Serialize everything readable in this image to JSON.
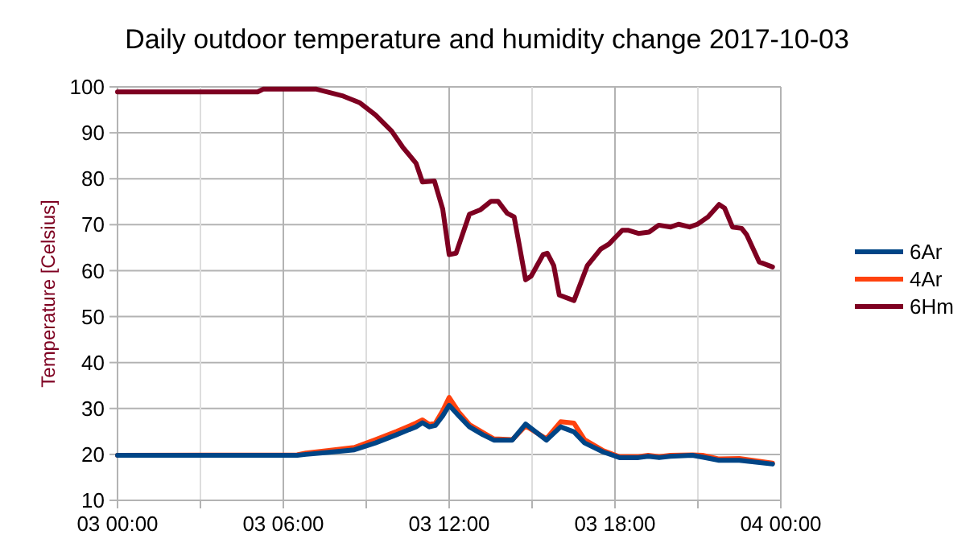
{
  "chart_data": {
    "type": "line",
    "title": "Daily outdoor temperature and humidity change 2017-10-03",
    "ylabel": "Temperature [Celsius]",
    "xlim": [
      "2017-10-03T00:00",
      "2017-10-04T00:00"
    ],
    "xticks": [
      {
        "value": "2017-10-03T00:00",
        "label": "03 00:00"
      },
      {
        "value": "2017-10-03T03:00",
        "label": null
      },
      {
        "value": "2017-10-03T06:00",
        "label": "03 06:00"
      },
      {
        "value": "2017-10-03T09:00",
        "label": null
      },
      {
        "value": "2017-10-03T12:00",
        "label": "03 12:00"
      },
      {
        "value": "2017-10-03T15:00",
        "label": null
      },
      {
        "value": "2017-10-03T18:00",
        "label": "03 18:00"
      },
      {
        "value": "2017-10-03T21:00",
        "label": null
      },
      {
        "value": "2017-10-04T00:00",
        "label": "04 00:00"
      }
    ],
    "ylim": [
      10,
      100
    ],
    "yticks": [
      10,
      20,
      30,
      40,
      50,
      60,
      70,
      80,
      90,
      100
    ],
    "grid": true,
    "legend": "right",
    "marker": "none",
    "line_style": "solid",
    "series": [
      {
        "name": "6Ar",
        "color": "#004586",
        "x": [
          "2017-10-03T00:00",
          "2017-10-03T06:30",
          "2017-10-03T06:49",
          "2017-10-03T07:35",
          "2017-10-03T08:34",
          "2017-10-03T09:20",
          "2017-10-03T10:06",
          "2017-10-03T10:48",
          "2017-10-03T11:02",
          "2017-10-03T11:17",
          "2017-10-03T11:30",
          "2017-10-03T11:46",
          "2017-10-03T12:00",
          "2017-10-03T12:21",
          "2017-10-03T12:44",
          "2017-10-03T13:13",
          "2017-10-03T13:37",
          "2017-10-03T14:17",
          "2017-10-03T14:46",
          "2017-10-03T15:31",
          "2017-10-03T16:02",
          "2017-10-03T16:31",
          "2017-10-03T16:54",
          "2017-10-03T17:35",
          "2017-10-03T18:10",
          "2017-10-03T18:51",
          "2017-10-03T19:12",
          "2017-10-03T19:36",
          "2017-10-03T20:00",
          "2017-10-03T20:48",
          "2017-10-03T21:10",
          "2017-10-03T21:46",
          "2017-10-03T22:30",
          "2017-10-03T23:42"
        ],
        "values": [
          19.8,
          19.8,
          20.0,
          20.4,
          21.0,
          22.5,
          24.3,
          26.0,
          26.9,
          26.0,
          26.3,
          28.4,
          30.7,
          28.4,
          26.0,
          24.3,
          23.1,
          23.1,
          26.6,
          23.1,
          26.0,
          24.9,
          22.5,
          20.5,
          19.3,
          19.3,
          19.6,
          19.3,
          19.6,
          19.8,
          19.4,
          18.7,
          18.7,
          17.9
        ]
      },
      {
        "name": "4Ar",
        "color": "#ff420e",
        "x": [
          "2017-10-03T00:00",
          "2017-10-03T06:30",
          "2017-10-03T06:49",
          "2017-10-03T07:35",
          "2017-10-03T08:34",
          "2017-10-03T09:20",
          "2017-10-03T10:06",
          "2017-10-03T10:48",
          "2017-10-03T11:02",
          "2017-10-03T11:17",
          "2017-10-03T11:30",
          "2017-10-03T11:46",
          "2017-10-03T12:00",
          "2017-10-03T12:21",
          "2017-10-03T12:44",
          "2017-10-03T13:13",
          "2017-10-03T13:37",
          "2017-10-03T14:17",
          "2017-10-03T14:46",
          "2017-10-03T15:31",
          "2017-10-03T16:02",
          "2017-10-03T16:31",
          "2017-10-03T16:54",
          "2017-10-03T17:35",
          "2017-10-03T18:10",
          "2017-10-03T18:51",
          "2017-10-03T19:12",
          "2017-10-03T19:36",
          "2017-10-03T20:00",
          "2017-10-03T20:48",
          "2017-10-03T21:10",
          "2017-10-03T21:46",
          "2017-10-03T22:30",
          "2017-10-03T23:42"
        ],
        "values": [
          19.8,
          19.9,
          20.3,
          20.8,
          21.5,
          23.2,
          25.0,
          26.8,
          27.5,
          26.5,
          26.8,
          29.5,
          32.4,
          29.2,
          26.5,
          24.8,
          23.4,
          23.2,
          26.2,
          23.4,
          27.1,
          26.8,
          23.2,
          20.8,
          19.5,
          19.5,
          19.8,
          19.5,
          19.8,
          19.9,
          19.8,
          19.0,
          19.1,
          18.1
        ]
      },
      {
        "name": "6Hm",
        "color": "#7e0021",
        "x": [
          "2017-10-03T00:00",
          "2017-10-03T05:04",
          "2017-10-03T05:16",
          "2017-10-03T07:12",
          "2017-10-03T08:10",
          "2017-10-03T08:45",
          "2017-10-03T09:20",
          "2017-10-03T09:55",
          "2017-10-03T10:19",
          "2017-10-03T10:48",
          "2017-10-03T11:02",
          "2017-10-03T11:28",
          "2017-10-03T11:46",
          "2017-10-03T12:00",
          "2017-10-03T12:15",
          "2017-10-03T12:44",
          "2017-10-03T13:07",
          "2017-10-03T13:31",
          "2017-10-03T13:46",
          "2017-10-03T14:06",
          "2017-10-03T14:21",
          "2017-10-03T14:46",
          "2017-10-03T14:58",
          "2017-10-03T15:24",
          "2017-10-03T15:33",
          "2017-10-03T15:47",
          "2017-10-03T15:59",
          "2017-10-03T16:31",
          "2017-10-03T17:00",
          "2017-10-03T17:29",
          "2017-10-03T17:47",
          "2017-10-03T18:16",
          "2017-10-03T18:28",
          "2017-10-03T18:51",
          "2017-10-03T19:14",
          "2017-10-03T19:35",
          "2017-10-03T20:01",
          "2017-10-03T20:18",
          "2017-10-03T20:42",
          "2017-10-03T20:59",
          "2017-10-03T21:22",
          "2017-10-03T21:46",
          "2017-10-03T21:58",
          "2017-10-03T22:15",
          "2017-10-03T22:35",
          "2017-10-03T22:46",
          "2017-10-03T23:13",
          "2017-10-03T23:42"
        ],
        "values": [
          98.9,
          98.9,
          99.5,
          99.5,
          98.0,
          96.6,
          93.9,
          90.4,
          86.9,
          83.4,
          79.3,
          79.5,
          73.4,
          63.5,
          63.8,
          72.3,
          73.2,
          75.1,
          75.1,
          72.5,
          71.7,
          58.0,
          58.8,
          63.5,
          63.8,
          61.1,
          54.7,
          53.5,
          61.1,
          64.7,
          65.8,
          68.8,
          68.8,
          68.1,
          68.4,
          69.9,
          69.5,
          70.1,
          69.5,
          70.1,
          71.7,
          74.4,
          73.6,
          69.5,
          69.2,
          67.8,
          61.9,
          60.8
        ]
      }
    ]
  }
}
